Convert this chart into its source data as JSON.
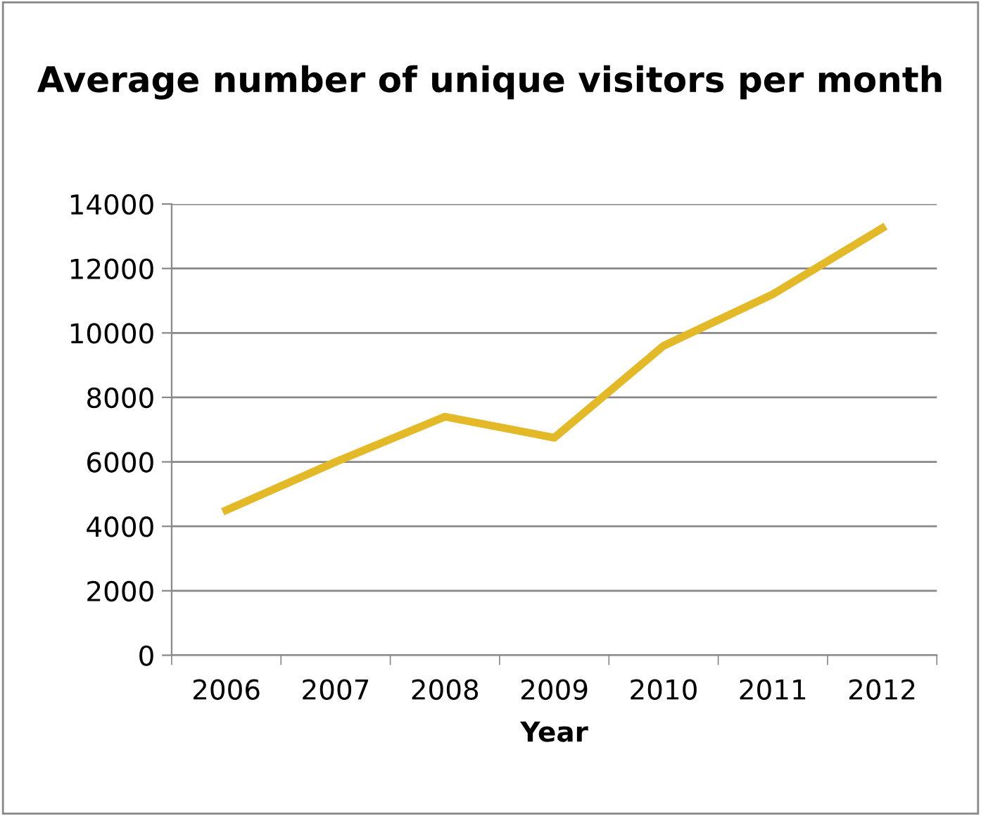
{
  "chart_data": {
    "type": "line",
    "title": "Average number of unique visitors per month",
    "xlabel": "Year",
    "categories": [
      "2006",
      "2007",
      "2008",
      "2009",
      "2010",
      "2011",
      "2012"
    ],
    "series": [
      {
        "color": "#e3b927",
        "values": [
          4500,
          6000,
          7400,
          6750,
          9600,
          11200,
          13250
        ]
      }
    ],
    "ylim": [
      0,
      14000
    ],
    "yticks": [
      0,
      2000,
      4000,
      6000,
      8000,
      10000,
      12000,
      14000
    ],
    "grid": "y",
    "legend": false,
    "marker": "none",
    "line_style": "solid"
  }
}
